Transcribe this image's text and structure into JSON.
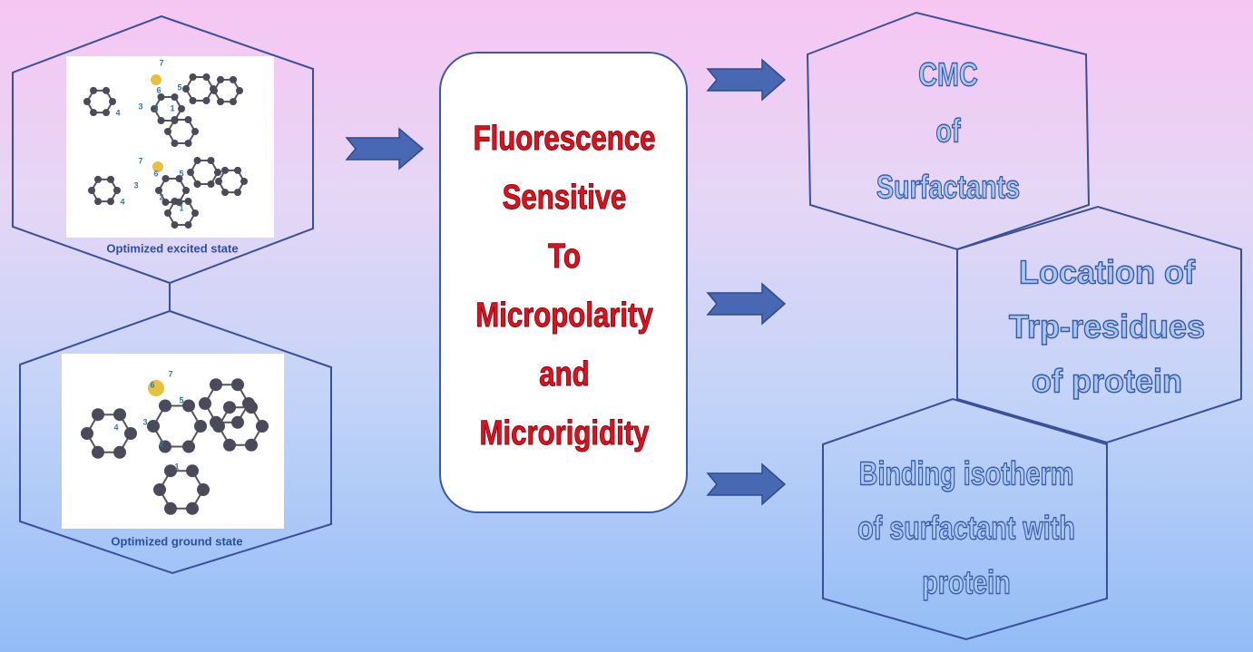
{
  "left_panels": [
    {
      "caption": "Optimized excited state",
      "molecules": [
        {
          "atom_labels": [
            "7",
            "6",
            "5",
            "4",
            "3",
            "2",
            "1"
          ]
        },
        {
          "atom_labels": [
            "7",
            "6",
            "5",
            "3",
            "4",
            "2",
            "1"
          ]
        }
      ]
    },
    {
      "caption": "Optimized ground state",
      "molecules": [
        {
          "atom_labels": [
            "7",
            "6",
            "5",
            "3",
            "4",
            "2",
            "1"
          ]
        }
      ]
    }
  ],
  "center": {
    "lines": [
      "Fluorescence",
      "Sensitive",
      "To",
      "Micropolarity",
      "and",
      "Microrigidity"
    ]
  },
  "outcomes": [
    {
      "lines": [
        "CMC",
        "of",
        "Surfactants"
      ]
    },
    {
      "lines": [
        "Location of",
        "Trp-residues",
        "of protein"
      ]
    },
    {
      "lines": [
        "Binding isotherm",
        "of surfactant with",
        "protein"
      ]
    }
  ]
}
